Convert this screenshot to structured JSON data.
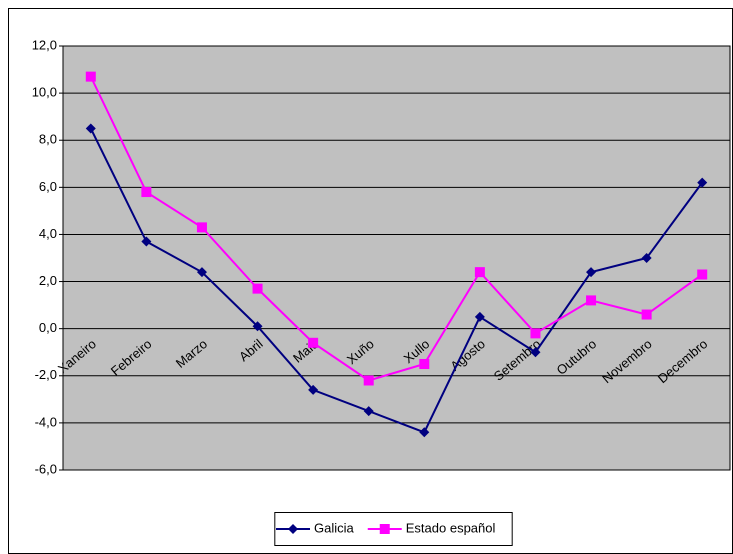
{
  "chart_data": {
    "type": "line",
    "categories": [
      "Xaneiro",
      "Febreiro",
      "Marzo",
      "Abril",
      "Maio",
      "Xuño",
      "Xullo",
      "Agosto",
      "Setembro",
      "Outubro",
      "Novembro",
      "Decembro"
    ],
    "series": [
      {
        "name": "Galicia",
        "color": "#000080",
        "marker": "diamond",
        "values": [
          8.5,
          3.7,
          2.4,
          0.1,
          -2.6,
          -3.5,
          -4.4,
          0.5,
          -1.0,
          2.4,
          3.0,
          6.2
        ]
      },
      {
        "name": "Estado español",
        "color": "#ff00ff",
        "marker": "square",
        "values": [
          10.7,
          5.8,
          4.3,
          1.7,
          -0.6,
          -2.2,
          -1.5,
          2.4,
          -0.2,
          1.2,
          0.6,
          2.3
        ]
      }
    ],
    "ylim": [
      -6,
      12
    ],
    "yticks": [
      {
        "value": -6,
        "label": "-6,0"
      },
      {
        "value": -4,
        "label": "-4,0"
      },
      {
        "value": -2,
        "label": "-2,0"
      },
      {
        "value": 0,
        "label": "0,0"
      },
      {
        "value": 2,
        "label": "2,0"
      },
      {
        "value": 4,
        "label": "4,0"
      },
      {
        "value": 6,
        "label": "6,0"
      },
      {
        "value": 8,
        "label": "8,0"
      },
      {
        "value": 10,
        "label": "10,0"
      },
      {
        "value": 12,
        "label": "12,0"
      }
    ],
    "grid": true,
    "plot_background": "#c0c0c0",
    "legend": "bottom"
  }
}
